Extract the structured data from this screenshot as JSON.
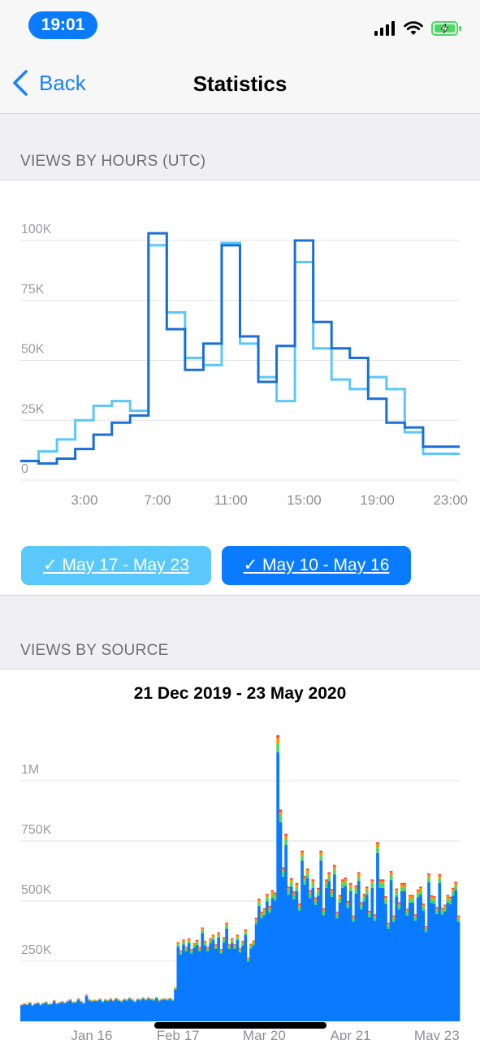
{
  "status_bar": {
    "time": "19:01",
    "icons": [
      "cellular-signal-icon",
      "wifi-icon",
      "battery-charging-icon"
    ]
  },
  "nav": {
    "back_label": "Back",
    "title": "Statistics"
  },
  "sections": {
    "hours_header": "VIEWS BY HOURS (UTC)",
    "source_header": "VIEWS BY SOURCE"
  },
  "periods": [
    {
      "label": "✓ May 17 - May 23",
      "color": "#5ac8fa"
    },
    {
      "label": "✓ May 10 - May 16",
      "color": "#0a7aff"
    }
  ],
  "chart_data": [
    {
      "type": "line",
      "title": "",
      "step": true,
      "ylim": [
        0,
        100000
      ],
      "yticks": [
        0,
        25000,
        50000,
        75000,
        100000
      ],
      "ytick_labels": [
        "0",
        "25K",
        "50K",
        "75K",
        "100K"
      ],
      "xtick_labels": [
        "3:00",
        "7:00",
        "11:00",
        "15:00",
        "19:00",
        "23:00"
      ],
      "xtick_hours": [
        3,
        7,
        11,
        15,
        19,
        23
      ],
      "grid": true,
      "series": [
        {
          "name": "May 17 - May 23",
          "color": "#5ac8fa",
          "x": [
            0,
            1,
            2,
            3,
            4,
            5,
            6,
            7,
            8,
            9,
            10,
            11,
            12,
            13,
            14,
            15,
            16,
            17,
            18,
            19,
            20,
            21,
            22,
            23
          ],
          "values": [
            8000,
            12000,
            17000,
            25000,
            31000,
            33000,
            29000,
            98000,
            70000,
            51000,
            48000,
            99000,
            57000,
            43000,
            33000,
            91000,
            55000,
            42000,
            38000,
            43000,
            38000,
            20000,
            11000,
            11000
          ]
        },
        {
          "name": "May 10 - May 16",
          "color": "#1a6fd6",
          "x": [
            0,
            1,
            2,
            3,
            4,
            5,
            6,
            7,
            8,
            9,
            10,
            11,
            12,
            13,
            14,
            15,
            16,
            17,
            18,
            19,
            20,
            21,
            22,
            23
          ],
          "values": [
            8000,
            7000,
            9000,
            13000,
            19000,
            24000,
            27000,
            103000,
            63000,
            46000,
            57000,
            98000,
            60000,
            41000,
            56000,
            100000,
            66000,
            55000,
            51000,
            34000,
            24000,
            22000,
            14000,
            14000
          ]
        }
      ]
    },
    {
      "type": "bar",
      "stacked": true,
      "title": "21 Dec 2019 - 23 May 2020",
      "ylim": [
        0,
        1250000
      ],
      "yticks": [
        0,
        250000,
        500000,
        750000,
        1000000
      ],
      "ytick_labels": [
        "0",
        "250K",
        "500K",
        "750K",
        "1M"
      ],
      "xtick_labels": [
        "Jan 16",
        "Feb 17",
        "Mar 20",
        "Apr 21",
        "May 23"
      ],
      "xtick_days": [
        26,
        58,
        90,
        122,
        154
      ],
      "grid": true,
      "series_colors": [
        "#0a7aff",
        "#4cd964",
        "#ff9500",
        "#ff3b30"
      ],
      "values": [
        70000,
        75000,
        72000,
        80000,
        68000,
        76000,
        79000,
        71000,
        78000,
        82000,
        73000,
        75000,
        88000,
        76000,
        80000,
        84000,
        79000,
        86000,
        92000,
        81000,
        83000,
        96000,
        85000,
        78000,
        111000,
        92000,
        87000,
        90000,
        88000,
        95000,
        84000,
        92000,
        89000,
        96000,
        88000,
        98000,
        91000,
        86000,
        94000,
        91000,
        99000,
        92000,
        85000,
        95000,
        92000,
        100000,
        93000,
        99000,
        95000,
        92000,
        101000,
        89000,
        94000,
        96000,
        93000,
        98000,
        91000,
        140000,
        330000,
        295000,
        340000,
        310000,
        345000,
        300000,
        325000,
        338000,
        310000,
        390000,
        335000,
        310000,
        345000,
        360000,
        320000,
        370000,
        300000,
        350000,
        410000,
        320000,
        345000,
        320000,
        360000,
        305000,
        335000,
        382000,
        265000,
        322000,
        336000,
        430000,
        510000,
        456000,
        470000,
        530000,
        480000,
        545000,
        535000,
        1190000,
        880000,
        640000,
        780000,
        560000,
        595000,
        540000,
        575000,
        490000,
        710000,
        605000,
        635000,
        545000,
        590000,
        515000,
        555000,
        710000,
        470000,
        590000,
        620000,
        550000,
        650000,
        455000,
        525000,
        590000,
        598000,
        500000,
        575000,
        440000,
        565000,
        620000,
        495000,
        530000,
        560000,
        460000,
        590000,
        445000,
        745000,
        590000,
        590000,
        520000,
        410000,
        625000,
        440000,
        552000,
        495000,
        575000,
        575000,
        468000,
        525000,
        525000,
        445000,
        548000,
        560000,
        490000,
        395000,
        615000,
        524000,
        520000,
        475000,
        612000,
        472000,
        485000,
        525000,
        518000,
        555000,
        580000,
        440000
      ],
      "source_shares": [
        0.94,
        0.03,
        0.02,
        0.01
      ]
    }
  ]
}
